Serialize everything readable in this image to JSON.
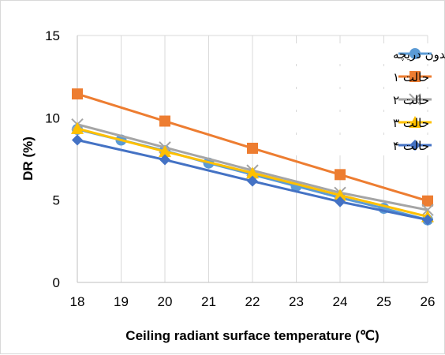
{
  "chart_data": {
    "type": "line",
    "title": "",
    "xlabel": "Ceiling radiant surface temperature (℃)",
    "ylabel": "DR (%)",
    "x": [
      18,
      19,
      20,
      21,
      22,
      23,
      24,
      25,
      26
    ],
    "xlim": [
      18,
      26
    ],
    "ylim": [
      0,
      15
    ],
    "x_ticks": [
      "18",
      "19",
      "20",
      "21",
      "22",
      "23",
      "24",
      "25",
      "26"
    ],
    "y_ticks": [
      "0",
      "5",
      "10",
      "15"
    ],
    "grid": "vertical",
    "legend_position": "top-right",
    "series": [
      {
        "name": "بدون دریچه",
        "color": "#5B9BD5",
        "marker": "circle",
        "values": [
          9.3,
          8.65,
          8.0,
          7.25,
          6.55,
          5.85,
          5.15,
          4.5,
          3.8
        ]
      },
      {
        "name": "حالت ۱",
        "color": "#ED7D31",
        "marker": "square",
        "values": [
          11.45,
          null,
          9.8,
          null,
          8.15,
          null,
          6.55,
          null,
          4.95
        ]
      },
      {
        "name": "حالت ۲",
        "color": "#A5A5A5",
        "marker": "x",
        "values": [
          9.6,
          null,
          8.2,
          null,
          6.8,
          null,
          5.45,
          null,
          4.4
        ]
      },
      {
        "name": "حالت ۳",
        "color": "#FFC000",
        "marker": "triangle",
        "values": [
          9.35,
          null,
          7.95,
          null,
          6.65,
          null,
          5.3,
          null,
          4.0
        ]
      },
      {
        "name": "حالت ۴",
        "color": "#4472C4",
        "marker": "diamond",
        "values": [
          8.65,
          null,
          7.45,
          null,
          6.15,
          null,
          4.9,
          null,
          3.8
        ]
      }
    ]
  }
}
